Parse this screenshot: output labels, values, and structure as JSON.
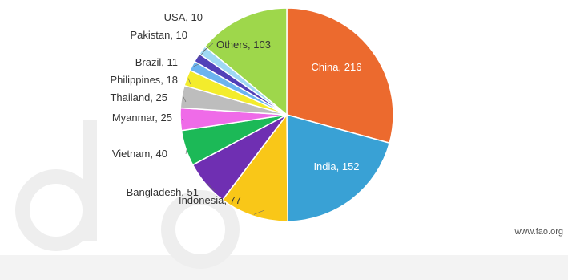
{
  "chart_data": {
    "type": "pie",
    "title": "",
    "slices": [
      {
        "label": "China",
        "value": 216,
        "text": "China, 216",
        "color": "#ec6a2e"
      },
      {
        "label": "India",
        "value": 152,
        "text": "India, 152",
        "color": "#39a1d5"
      },
      {
        "label": "Indonesia",
        "value": 77,
        "text": "Indonesia, 77",
        "color": "#f9c718"
      },
      {
        "label": "Bangladesh",
        "value": 51,
        "text": "Bangladesh, 51",
        "color": "#6f2fb2"
      },
      {
        "label": "Vietnam",
        "value": 40,
        "text": "Vietnam, 40",
        "color": "#1cb957"
      },
      {
        "label": "Myanmar",
        "value": 25,
        "text": "Myanmar, 25",
        "color": "#ef6be8"
      },
      {
        "label": "Thailand",
        "value": 25,
        "text": "Thailand, 25",
        "color": "#bdbdbd"
      },
      {
        "label": "Philippines",
        "value": 18,
        "text": "Philippines, 18",
        "color": "#f3ec2c"
      },
      {
        "label": "Brazil",
        "value": 11,
        "text": "Brazil, 11",
        "color": "#6cb4f0"
      },
      {
        "label": "Pakistan",
        "value": 10,
        "text": "Pakistan, 10",
        "color": "#5140b8"
      },
      {
        "label": "USA",
        "value": 10,
        "text": "USA, 10",
        "color": "#9fd8f3"
      },
      {
        "label": "Others",
        "value": 103,
        "text": "Others, 103",
        "color": "#9ed74b"
      }
    ]
  },
  "credit": "www.fao.org"
}
